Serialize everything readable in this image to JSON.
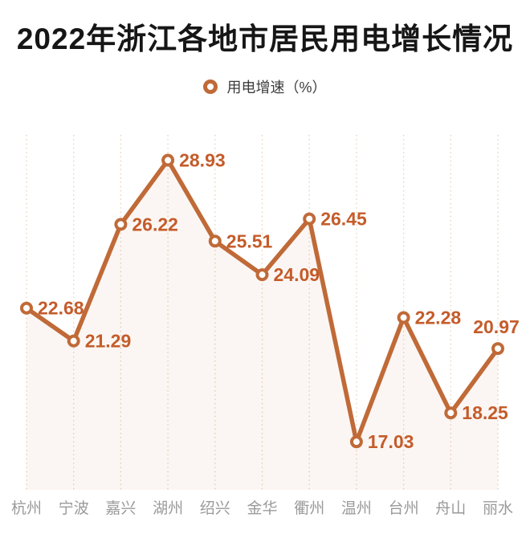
{
  "page": {
    "title": "2022年浙江各地市居民用电增长情况"
  },
  "legend": {
    "label": "用电增速（%）"
  },
  "chart_data": {
    "type": "line",
    "title": "2022年浙江各地市居民用电增长情况",
    "legend_entries": [
      "用电增速（%）"
    ],
    "legend_position": "top-center",
    "categories": [
      "杭州",
      "宁波",
      "嘉兴",
      "湖州",
      "绍兴",
      "金华",
      "衢州",
      "温州",
      "台州",
      "舟山",
      "丽水"
    ],
    "series": [
      {
        "name": "用电增速（%）",
        "values": [
          22.68,
          21.29,
          26.22,
          28.93,
          25.51,
          24.09,
          26.45,
          17.03,
          22.28,
          18.25,
          20.97
        ]
      }
    ],
    "xlabel": "",
    "ylabel": "",
    "ylim": [
      15,
      30
    ],
    "grid": "vertical-dotted",
    "data_labels_visible": true,
    "colors": {
      "line": "#c06a38",
      "marker_fill": "#ffffff",
      "data_label": "#c45c2a",
      "gridline": "#e9d2bc",
      "area_fill": "rgba(192,106,56,0.06)",
      "axis_label": "#9a9a9a",
      "title": "#161616"
    }
  }
}
